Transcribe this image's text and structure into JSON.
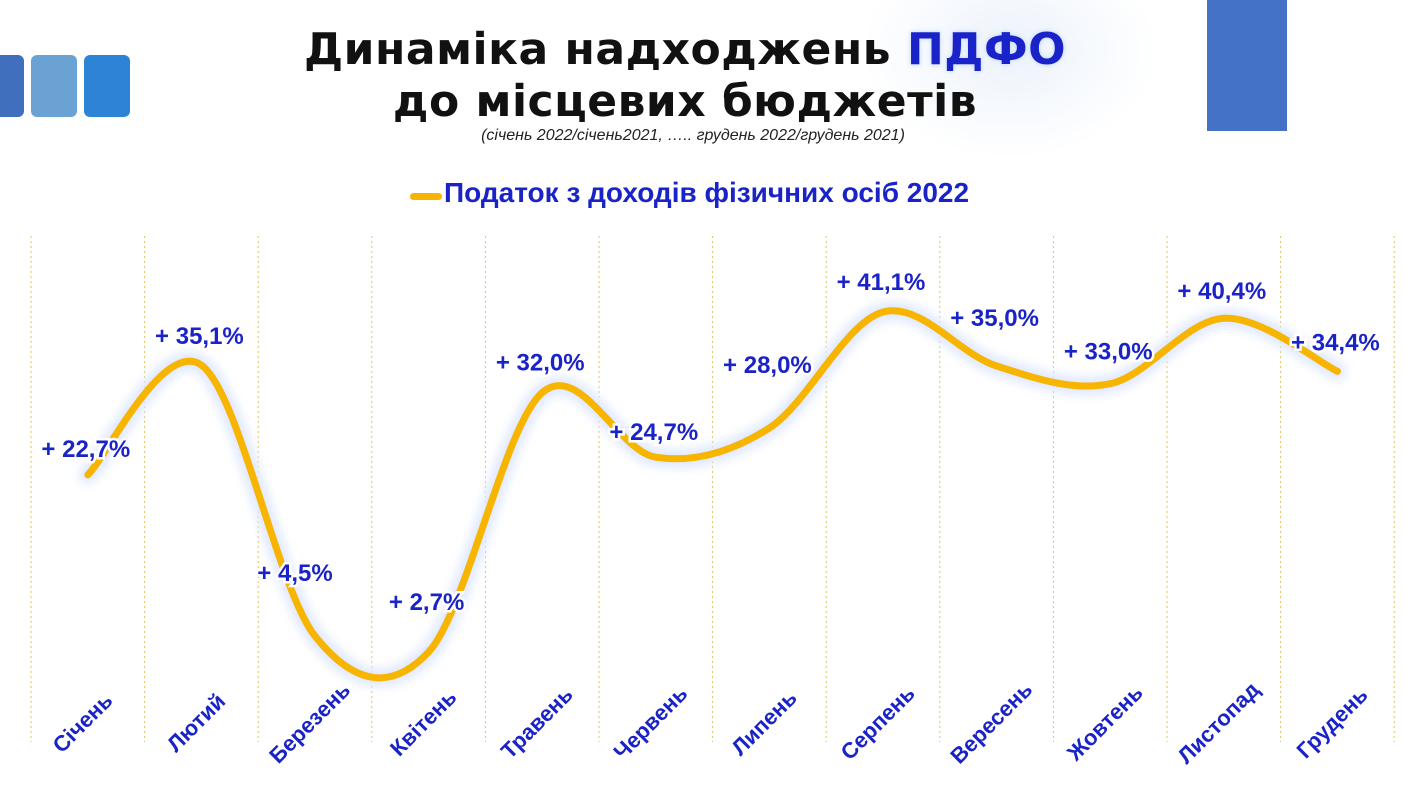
{
  "header": {
    "title_line1_prefix": "Динаміка надходжень",
    "title_line1_highlight": "ПДФО",
    "title_line2": "до місцевих бюджетів",
    "subtitle": "(січень 2022/січень2021, ….. грудень 2022/грудень 2021)"
  },
  "colors": {
    "line": "#f7b500",
    "label": "#1a23c8",
    "category_label": "#1a23c8",
    "gridline": "#e3c35a",
    "accent_blue": "#4472c4"
  },
  "chart_data": {
    "type": "line",
    "title": "",
    "xlabel": "",
    "ylabel": "",
    "categories": [
      "Січень",
      "Лютий",
      "Березень",
      "Квітень",
      "Травень",
      "Червень",
      "Липень",
      "Серпень",
      "Вересень",
      "Жовтень",
      "Листопад",
      "Грудень"
    ],
    "series": [
      {
        "name": "Податок з доходів фізичних осіб 2022",
        "values": [
          22.7,
          35.1,
          4.5,
          2.7,
          32.0,
          24.7,
          28.0,
          41.1,
          35.0,
          33.0,
          40.4,
          34.4
        ],
        "labels": [
          "+ 22,7%",
          "+ 35,1%",
          "+ 4,5%",
          "+ 2,7%",
          "+ 32,0%",
          "+ 24,7%",
          "+ 28,0%",
          "+ 41,1%",
          "+ 35,0%",
          "+ 33,0%",
          "+ 40,4%",
          "+ 34,4%"
        ]
      }
    ],
    "smooth": true,
    "grid": "vertical dashed between categories",
    "legend_position": "top",
    "y_axis_visible": false
  }
}
